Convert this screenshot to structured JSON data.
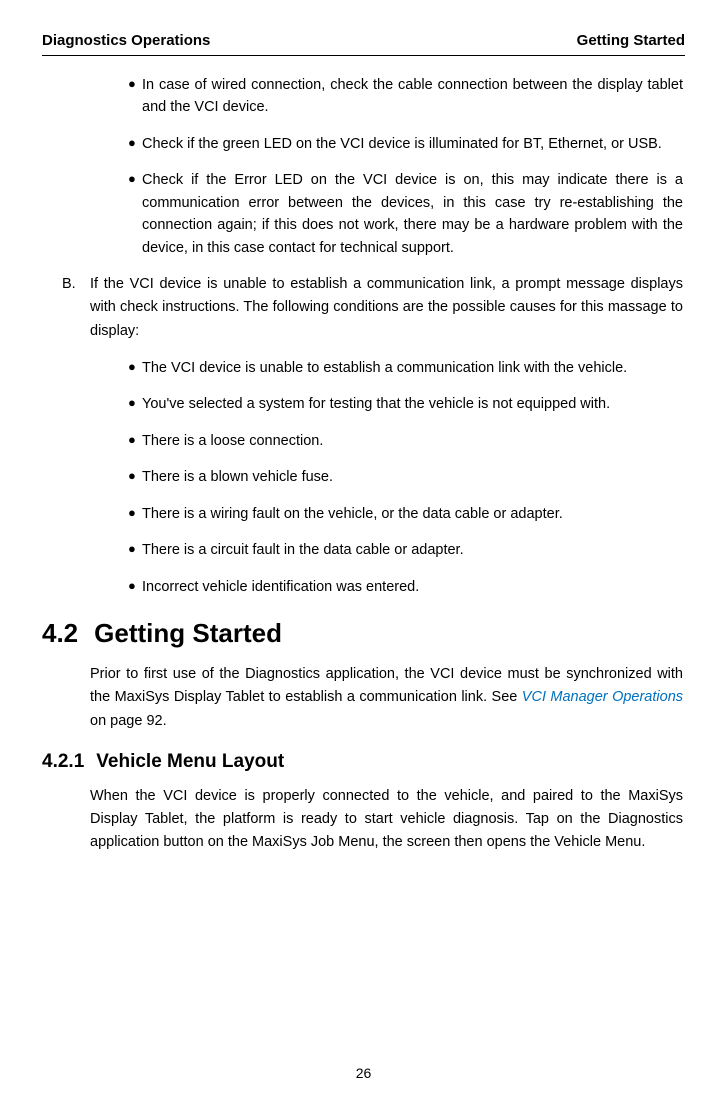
{
  "header": {
    "left": "Diagnostics Operations",
    "right": "Getting Started"
  },
  "bulletsA": [
    "In case of wired connection, check the cable connection between the display tablet and the VCI device.",
    "Check if the green LED on the VCI device is illuminated for BT, Ethernet, or USB.",
    "Check if the Error LED on the VCI device is on, this may indicate there is a communication error between the devices, in this case try re-establishing the connection again; if this does not work, there may be a hardware problem with the device, in this case contact for technical support."
  ],
  "itemB": {
    "marker": "B.",
    "text": "If the VCI device is unable to establish a communication link, a prompt message displays with check instructions. The following conditions are the possible causes for this massage to display:"
  },
  "bulletsB": [
    "The VCI device is unable to establish a communication link with the vehicle.",
    "You've selected a system for testing that the vehicle is not equipped with.",
    "There is a loose connection.",
    "There is a blown vehicle fuse.",
    "There is a wiring fault on the vehicle, or the data cable or adapter.",
    "There is a circuit fault in the data cable or adapter.",
    "Incorrect vehicle identification was entered."
  ],
  "section": {
    "number": "4.2",
    "title": "Getting Started",
    "paragraphPrefix": "Prior to first use of the Diagnostics application, the VCI device must be synchronized with the MaxiSys Display Tablet to establish a communication link. See ",
    "linkText": "VCI Manager Operations",
    "paragraphSuffix": " on page 92."
  },
  "subsection": {
    "number": "4.2.1",
    "title": "Vehicle Menu Layout",
    "paragraph": "When the VCI device is properly connected to the vehicle, and paired to the MaxiSys Display Tablet, the platform is ready to start vehicle diagnosis. Tap on the Diagnostics application button on the MaxiSys Job Menu, the screen then opens the Vehicle Menu."
  },
  "pageNumber": "26",
  "bulletChar": "●"
}
